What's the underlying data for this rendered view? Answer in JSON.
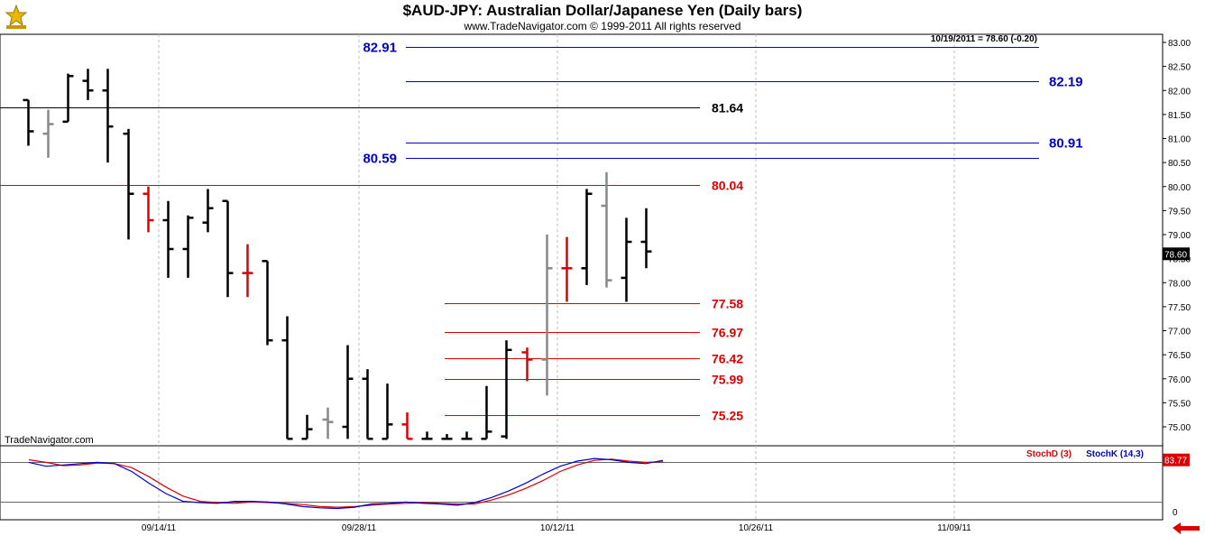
{
  "header": {
    "title": "$AUD-JPY:  Australian Dollar/Japanese Yen  (Daily bars)",
    "subtitle": "www.TradeNavigator.com © 1999-2011 All rights reserved",
    "last_info": "10/19/2011 = 78.60 (-0.20)",
    "watermark": "TradeNavigator.com"
  },
  "chart_data": {
    "type": "ohlc",
    "price_axis": {
      "ticks": [
        "83.00",
        "82.50",
        "82.00",
        "81.50",
        "81.00",
        "80.50",
        "80.00",
        "79.50",
        "79.00",
        "78.50",
        "78.00",
        "77.50",
        "77.00",
        "76.50",
        "76.00",
        "75.50",
        "75.00"
      ],
      "range": [
        74.75,
        83.2
      ],
      "last_price": "78.60"
    },
    "date_axis": {
      "labels": [
        "09/14/11",
        "09/28/11",
        "10/12/11",
        "10/26/11",
        "11/09/11"
      ]
    },
    "bars": [
      {
        "o": 81.8,
        "h": 81.8,
        "l": 80.85,
        "c": 81.15,
        "color": "black"
      },
      {
        "o": 81.1,
        "h": 81.6,
        "l": 80.6,
        "c": 81.3,
        "color": "gray"
      },
      {
        "o": 81.35,
        "h": 82.35,
        "l": 81.35,
        "c": 82.3,
        "color": "black"
      },
      {
        "o": 82.2,
        "h": 82.45,
        "l": 81.8,
        "c": 82.0,
        "color": "black"
      },
      {
        "o": 82.0,
        "h": 82.45,
        "l": 80.5,
        "c": 81.25,
        "color": "black"
      },
      {
        "o": 81.1,
        "h": 81.2,
        "l": 78.9,
        "c": 79.85,
        "color": "black"
      },
      {
        "o": 79.85,
        "h": 80.0,
        "l": 79.05,
        "c": 79.3,
        "color": "red"
      },
      {
        "o": 79.3,
        "h": 79.7,
        "l": 78.1,
        "c": 78.7,
        "color": "black"
      },
      {
        "o": 78.7,
        "h": 79.4,
        "l": 78.1,
        "c": 79.35,
        "color": "black"
      },
      {
        "o": 79.25,
        "h": 79.95,
        "l": 79.05,
        "c": 79.55,
        "color": "black"
      },
      {
        "o": 79.7,
        "h": 79.7,
        "l": 77.7,
        "c": 78.2,
        "color": "black"
      },
      {
        "o": 78.2,
        "h": 78.8,
        "l": 77.7,
        "c": 78.2,
        "color": "red"
      },
      {
        "o": 78.45,
        "h": 78.45,
        "l": 76.7,
        "c": 76.8,
        "color": "black"
      },
      {
        "o": 76.8,
        "h": 77.3,
        "l": 74.75,
        "c": 74.75,
        "color": "black"
      },
      {
        "o": 74.75,
        "h": 75.25,
        "l": 74.75,
        "c": 74.95,
        "color": "black"
      },
      {
        "o": 75.15,
        "h": 75.4,
        "l": 74.75,
        "c": 75.1,
        "color": "gray"
      },
      {
        "o": 75.0,
        "h": 76.7,
        "l": 74.75,
        "c": 76.0,
        "color": "black"
      },
      {
        "o": 76.0,
        "h": 76.2,
        "l": 74.75,
        "c": 74.75,
        "color": "black"
      },
      {
        "o": 74.75,
        "h": 75.9,
        "l": 74.75,
        "c": 75.05,
        "color": "black"
      },
      {
        "o": 75.05,
        "h": 75.3,
        "l": 74.75,
        "c": 74.75,
        "color": "red"
      },
      {
        "o": 74.75,
        "h": 74.9,
        "l": 74.75,
        "c": 74.75,
        "color": "black"
      },
      {
        "o": 74.75,
        "h": 74.85,
        "l": 74.75,
        "c": 74.75,
        "color": "black"
      },
      {
        "o": 74.75,
        "h": 74.9,
        "l": 74.75,
        "c": 74.75,
        "color": "black"
      },
      {
        "o": 74.75,
        "h": 75.85,
        "l": 74.75,
        "c": 74.9,
        "color": "black"
      },
      {
        "o": 74.8,
        "h": 76.8,
        "l": 74.75,
        "c": 76.6,
        "color": "black"
      },
      {
        "o": 76.55,
        "h": 76.65,
        "l": 75.95,
        "c": 76.4,
        "color": "red"
      },
      {
        "o": 76.4,
        "h": 79.0,
        "l": 75.65,
        "c": 78.3,
        "color": "gray"
      },
      {
        "o": 78.3,
        "h": 78.95,
        "l": 77.6,
        "c": 78.3,
        "color": "red"
      },
      {
        "o": 78.3,
        "h": 79.95,
        "l": 77.95,
        "c": 79.85,
        "color": "black"
      },
      {
        "o": 79.6,
        "h": 80.3,
        "l": 77.9,
        "c": 78.05,
        "color": "gray"
      },
      {
        "o": 78.1,
        "h": 79.35,
        "l": 77.6,
        "c": 78.85,
        "color": "black"
      },
      {
        "o": 78.85,
        "h": 79.55,
        "l": 78.3,
        "c": 78.65,
        "color": "black"
      }
    ],
    "levels": [
      {
        "value": 82.91,
        "label": "82.91",
        "color": "#0000cc"
      },
      {
        "value": 82.19,
        "label": "82.19",
        "color": "#0000cc"
      },
      {
        "value": 81.64,
        "label": "81.64",
        "color": "#000000"
      },
      {
        "value": 80.91,
        "label": "80.91",
        "color": "#0000cc"
      },
      {
        "value": 80.59,
        "label": "80.59",
        "color": "#0000cc"
      },
      {
        "value": 80.04,
        "label": "80.04",
        "color": "#dd0000"
      },
      {
        "value": 77.58,
        "label": "77.58",
        "color": "#dd0000"
      },
      {
        "value": 76.97,
        "label": "76.97",
        "color": "#dd0000"
      },
      {
        "value": 76.42,
        "label": "76.42",
        "color": "#dd0000"
      },
      {
        "value": 75.99,
        "label": "75.99",
        "color": "#dd0000"
      },
      {
        "value": 75.25,
        "label": "75.25",
        "color": "#dd0000"
      }
    ],
    "indicator": {
      "legend": [
        {
          "label": "StochD (3)",
          "color": "#dd0000"
        },
        {
          "label": "StochK (14,3)",
          "color": "#0000cc"
        }
      ],
      "last_value": "83.77",
      "axis_label": "0",
      "range": [
        0,
        100
      ],
      "reference_lines": [
        80,
        20
      ],
      "stoch_k": [
        80,
        74,
        76,
        78,
        80,
        78,
        66,
        48,
        32,
        20,
        18,
        17,
        20,
        20,
        19,
        16,
        12,
        10,
        9,
        11,
        16,
        17,
        19,
        17,
        16,
        14,
        18,
        26,
        36,
        48,
        62,
        74,
        82,
        86,
        84,
        80,
        78,
        83
      ],
      "stoch_d": [
        84,
        80,
        75,
        76,
        79,
        78,
        72,
        58,
        42,
        28,
        20,
        18,
        17,
        19,
        18,
        17,
        15,
        12,
        11,
        12,
        14,
        16,
        17,
        18,
        17,
        16,
        16,
        22,
        30,
        40,
        52,
        66,
        76,
        83,
        85,
        82,
        80,
        81
      ]
    }
  }
}
